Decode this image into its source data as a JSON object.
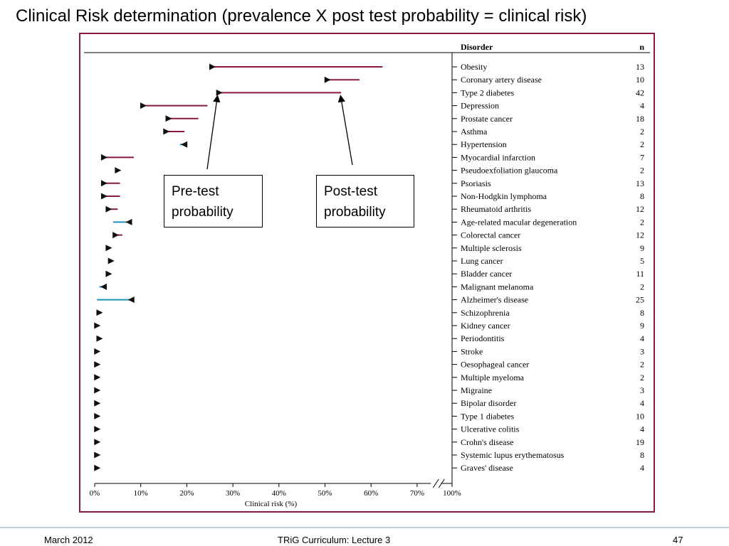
{
  "slide": {
    "title": "Clinical Risk determination (prevalence X post test probability = clinical risk)",
    "footer_left": "March 2012",
    "footer_center": "TRiG Curriculum: Lecture 3",
    "footer_right": "47"
  },
  "callouts": {
    "pre_line1": "Pre-test",
    "pre_line2": "probability",
    "post_line1": "Post-test",
    "post_line2": "probability"
  },
  "colors": {
    "frame": "#8b1a3c",
    "increase": "#8b1a3c",
    "decrease": "#1f8fc0",
    "marker": "#111111",
    "footer_rule": "#b9d3e4"
  },
  "chart_data": {
    "type": "dot-range",
    "xlabel": "Clinical risk (%)",
    "xlim": [
      0,
      100
    ],
    "axis_break": [
      75,
      100
    ],
    "x_ticks": [
      "0%",
      "10%",
      "20%",
      "30%",
      "40%",
      "50%",
      "60%",
      "70%",
      "100%"
    ],
    "header_disorder": "Disorder",
    "header_n": "n",
    "rows": [
      {
        "disorder": "Obesity",
        "n": "13",
        "pre": 25.5,
        "post": 62.5
      },
      {
        "disorder": "Coronary artery disease",
        "n": "10",
        "pre": 50.5,
        "post": 57.5
      },
      {
        "disorder": "Type 2 diabetes",
        "n": "42",
        "pre": 27,
        "post": 53.5
      },
      {
        "disorder": "Depression",
        "n": "4",
        "pre": 10.5,
        "post": 24.5
      },
      {
        "disorder": "Prostate cancer",
        "n": "18",
        "pre": 16,
        "post": 22.5
      },
      {
        "disorder": "Asthma",
        "n": "2",
        "pre": 15.5,
        "post": 19.5
      },
      {
        "disorder": "Hypertension",
        "n": "2",
        "pre": 19.5,
        "post": 18.5
      },
      {
        "disorder": "Myocardial infarction",
        "n": "7",
        "pre": 2,
        "post": 8.5
      },
      {
        "disorder": "Pseudoexfoliation glaucoma",
        "n": "2",
        "pre": 5,
        "post": 5
      },
      {
        "disorder": "Psoriasis",
        "n": "13",
        "pre": 2,
        "post": 5.5
      },
      {
        "disorder": "Non-Hodgkin lymphoma",
        "n": "8",
        "pre": 2,
        "post": 5.5
      },
      {
        "disorder": "Rheumatoid arthritis",
        "n": "12",
        "pre": 3,
        "post": 5
      },
      {
        "disorder": "Age-related macular degeneration",
        "n": "2",
        "pre": 7.5,
        "post": 4
      },
      {
        "disorder": "Colorectal cancer",
        "n": "12",
        "pre": 4.5,
        "post": 6
      },
      {
        "disorder": "Multiple sclerosis",
        "n": "9",
        "pre": 3,
        "post": 3.5
      },
      {
        "disorder": "Lung cancer",
        "n": "5",
        "pre": 3.5,
        "post": 3.5
      },
      {
        "disorder": "Bladder cancer",
        "n": "11",
        "pre": 3,
        "post": 3.5
      },
      {
        "disorder": "Malignant melanoma",
        "n": "2",
        "pre": 2,
        "post": 1
      },
      {
        "disorder": "Alzheimer's disease",
        "n": "25",
        "pre": 8,
        "post": 0.5
      },
      {
        "disorder": "Schizophrenia",
        "n": "8",
        "pre": 1,
        "post": 1.5
      },
      {
        "disorder": "Kidney cancer",
        "n": "9",
        "pre": 0.5,
        "post": 1
      },
      {
        "disorder": "Periodontitis",
        "n": "4",
        "pre": 1,
        "post": 1.5
      },
      {
        "disorder": "Stroke",
        "n": "3",
        "pre": 0.5,
        "post": 0.5
      },
      {
        "disorder": "Oesophageal cancer",
        "n": "2",
        "pre": 0.5,
        "post": 0.5
      },
      {
        "disorder": "Multiple myeloma",
        "n": "2",
        "pre": 0.5,
        "post": 0.5
      },
      {
        "disorder": "Migraine",
        "n": "3",
        "pre": 0.5,
        "post": 0.5
      },
      {
        "disorder": "Bipolar disorder",
        "n": "4",
        "pre": 0.5,
        "post": 1
      },
      {
        "disorder": "Type 1 diabetes",
        "n": "10",
        "pre": 0.5,
        "post": 0.5
      },
      {
        "disorder": "Ulcerative colitis",
        "n": "4",
        "pre": 0.5,
        "post": 0.5
      },
      {
        "disorder": "Crohn's disease",
        "n": "19",
        "pre": 0.5,
        "post": 0.5
      },
      {
        "disorder": "Systemic lupus erythematosus",
        "n": "8",
        "pre": 0.5,
        "post": 0.5
      },
      {
        "disorder": "Graves' disease",
        "n": "4",
        "pre": 0.5,
        "post": 0.5
      }
    ]
  }
}
